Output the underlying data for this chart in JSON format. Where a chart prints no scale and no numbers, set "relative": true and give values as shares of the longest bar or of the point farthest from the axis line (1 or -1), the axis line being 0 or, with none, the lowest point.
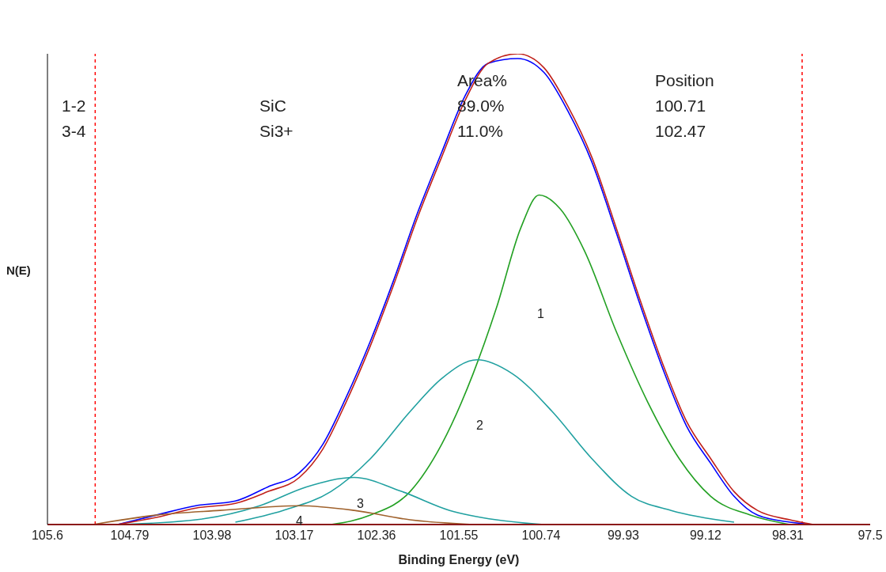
{
  "chart_data": {
    "type": "line",
    "relative": true,
    "xlabel": "Binding Energy (eV)",
    "ylabel": "N(E)",
    "xlim": [
      105.6,
      97.5
    ],
    "xticks": [
      105.6,
      104.79,
      103.98,
      103.17,
      102.36,
      101.55,
      100.74,
      99.93,
      99.12,
      98.31,
      97.5
    ],
    "grid": false,
    "legend": false,
    "series": [
      {
        "color": "#0000ff",
        "x": [
          104.91,
          104.53,
          104.14,
          103.75,
          103.43,
          103.12,
          102.89,
          102.66,
          102.42,
          102.19,
          101.96,
          101.72,
          101.49,
          101.26,
          100.97,
          100.71,
          100.48,
          100.24,
          100.0,
          99.77,
          99.54,
          99.31,
          99.07,
          98.84,
          98.61,
          98.29,
          98.06
        ],
        "values": [
          0.0,
          0.02,
          0.04,
          0.05,
          0.08,
          0.11,
          0.17,
          0.27,
          0.39,
          0.52,
          0.66,
          0.79,
          0.91,
          0.98,
          0.99,
          0.96,
          0.88,
          0.77,
          0.62,
          0.47,
          0.33,
          0.21,
          0.13,
          0.06,
          0.02,
          0.005,
          0.0
        ]
      },
      {
        "color": "#c0201a",
        "x": [
          104.91,
          104.53,
          104.14,
          103.75,
          103.43,
          103.12,
          102.89,
          102.66,
          102.42,
          102.19,
          101.96,
          101.72,
          101.49,
          101.26,
          100.97,
          100.71,
          100.48,
          100.24,
          100.0,
          99.77,
          99.54,
          99.31,
          99.07,
          98.84,
          98.61,
          98.29,
          98.06
        ],
        "values": [
          0.0,
          0.015,
          0.035,
          0.045,
          0.07,
          0.1,
          0.16,
          0.26,
          0.38,
          0.51,
          0.65,
          0.78,
          0.9,
          0.98,
          1.0,
          0.97,
          0.89,
          0.78,
          0.63,
          0.48,
          0.34,
          0.22,
          0.14,
          0.07,
          0.03,
          0.01,
          0.0
        ]
      },
      {
        "color": "#22a022",
        "x": [
          102.81,
          102.42,
          102.03,
          101.72,
          101.41,
          101.18,
          100.94,
          100.76,
          100.55,
          100.31,
          100.0,
          99.69,
          99.38,
          99.07,
          98.68,
          98.29
        ],
        "values": [
          0.0,
          0.02,
          0.07,
          0.17,
          0.32,
          0.46,
          0.63,
          0.7,
          0.67,
          0.58,
          0.41,
          0.26,
          0.14,
          0.06,
          0.02,
          0.0
        ]
      },
      {
        "color": "#20a0a0",
        "x": [
          103.75,
          103.28,
          102.81,
          102.42,
          102.03,
          101.72,
          101.37,
          101.02,
          100.63,
          100.24,
          99.85,
          99.46,
          98.84
        ],
        "values": [
          0.005,
          0.03,
          0.07,
          0.14,
          0.24,
          0.31,
          0.35,
          0.32,
          0.24,
          0.14,
          0.06,
          0.03,
          0.005
        ]
      },
      {
        "color": "#20a0a0",
        "x": [
          104.91,
          104.14,
          103.51,
          103.05,
          102.58,
          102.11,
          101.64,
          101.18,
          100.71
        ],
        "values": [
          0.0,
          0.01,
          0.04,
          0.08,
          0.1,
          0.07,
          0.03,
          0.01,
          0.0
        ]
      },
      {
        "color": "#a0622d",
        "x": [
          105.15,
          104.53,
          103.9,
          103.12,
          102.58,
          102.03,
          101.41
        ],
        "values": [
          0.0,
          0.02,
          0.03,
          0.04,
          0.03,
          0.01,
          0.0
        ]
      }
    ],
    "ref_lines": [
      {
        "axis": "x",
        "value": 105.13,
        "color": "#ff0000",
        "line_style": "dashed"
      },
      {
        "axis": "x",
        "value": 98.17,
        "color": "#ff0000",
        "line_style": "dashed"
      }
    ],
    "annotations": [
      "Area%",
      "Position",
      "1-2",
      "SiC",
      "89.0%",
      "100.71",
      "3-4",
      "Si3+",
      "11.0%",
      "102.47",
      "1",
      "2",
      "4",
      "3"
    ]
  }
}
